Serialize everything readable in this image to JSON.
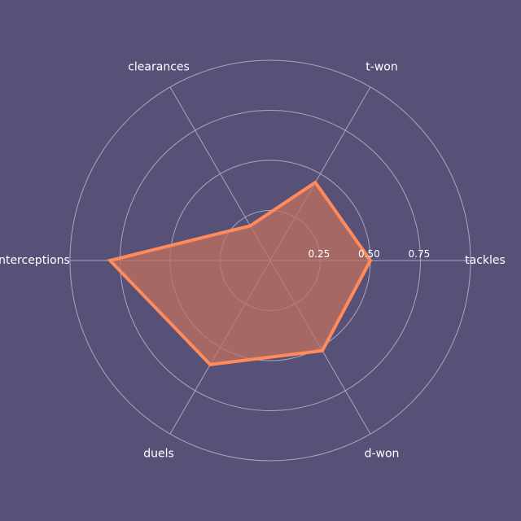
{
  "chart_data": {
    "type": "radar",
    "axes": [
      "tackles",
      "t-won",
      "clearances",
      "interceptions",
      "duels",
      "d-won"
    ],
    "values": [
      0.5,
      0.45,
      0.2,
      0.8,
      0.6,
      0.52
    ],
    "rlim": [
      0,
      1
    ],
    "rticks": [
      0.25,
      0.5,
      0.75,
      1.0
    ],
    "rtick_labels": [
      "0.25",
      "0.50",
      "0.75"
    ],
    "grid": true,
    "colors": {
      "background": "#585177",
      "grid": "#a9a5bd",
      "series_line": "#ff8a5b",
      "series_fill": "#c0705f",
      "text": "#ffffff"
    }
  }
}
